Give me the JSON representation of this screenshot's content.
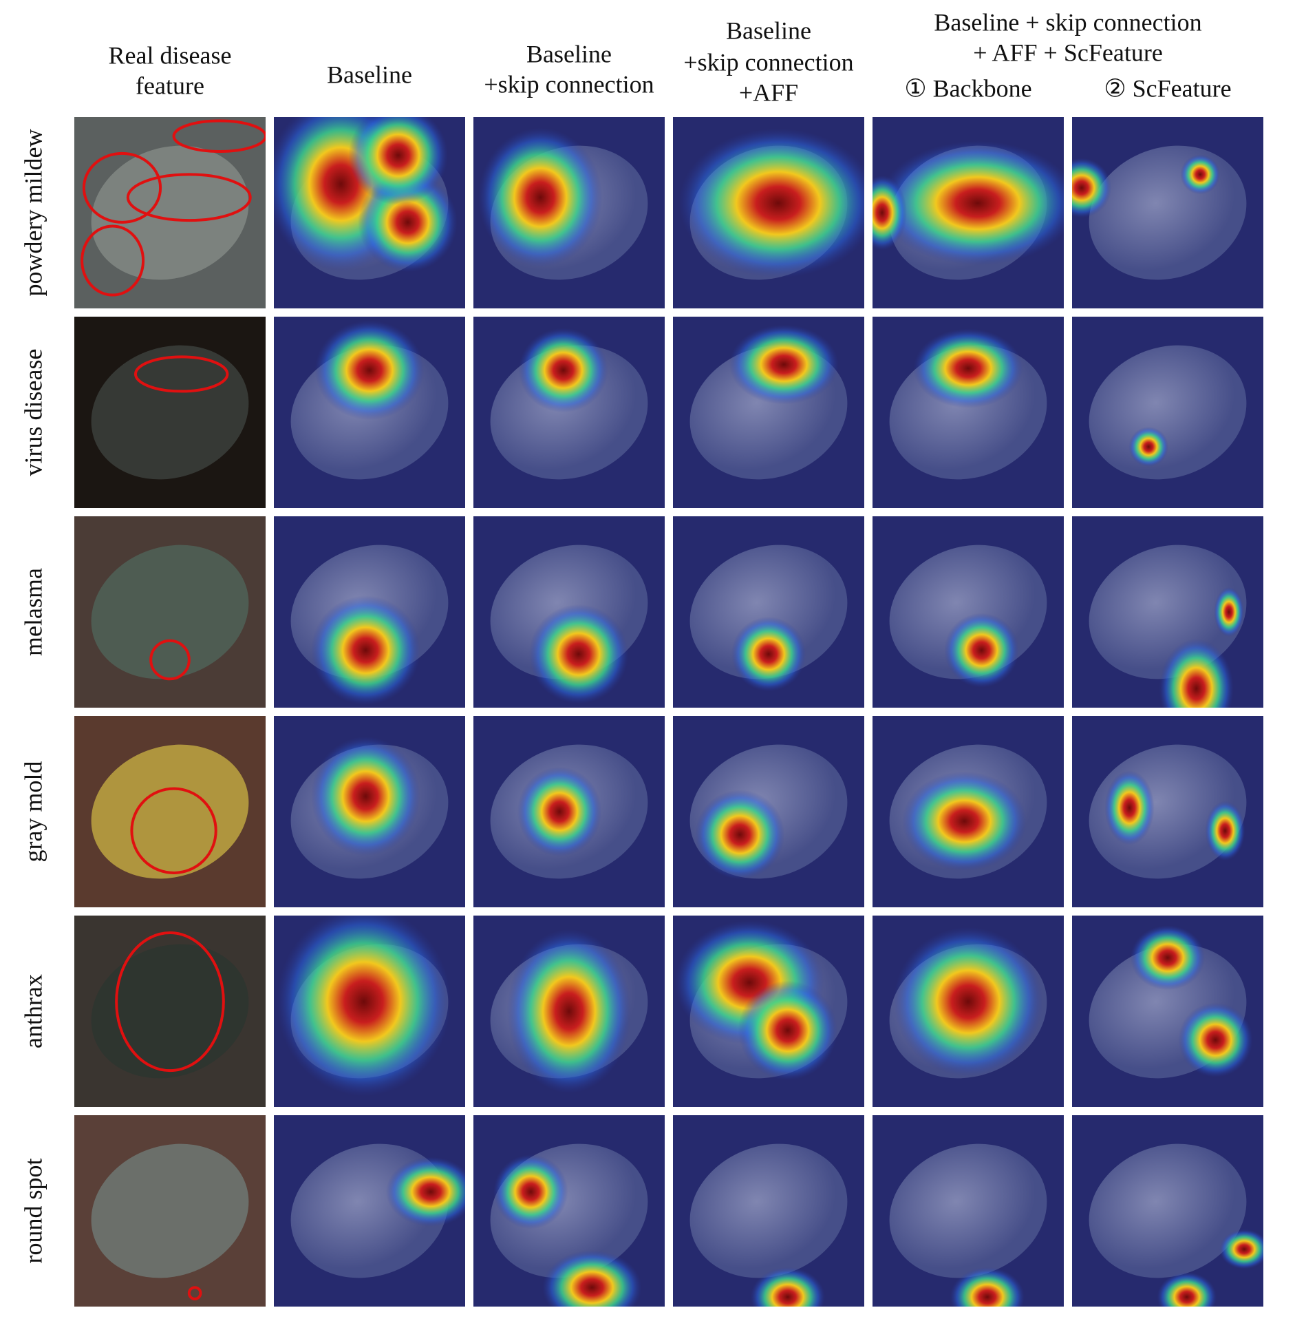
{
  "header": {
    "columns": [
      {
        "lines": [
          "Real disease",
          "feature"
        ]
      },
      {
        "lines": [
          "Baseline"
        ]
      },
      {
        "lines": [
          "Baseline",
          "+skip connection"
        ]
      },
      {
        "lines": [
          "Baseline",
          "+skip connection",
          "+AFF"
        ]
      }
    ],
    "group": {
      "lines": [
        "Baseline + skip connection",
        "+ AFF + ScFeature"
      ],
      "sub": [
        "① Backbone",
        "② ScFeature"
      ]
    }
  },
  "rows": [
    "powdery mildew",
    "virus disease",
    "melasma",
    "gray mold",
    "anthrax",
    "round spot"
  ]
}
